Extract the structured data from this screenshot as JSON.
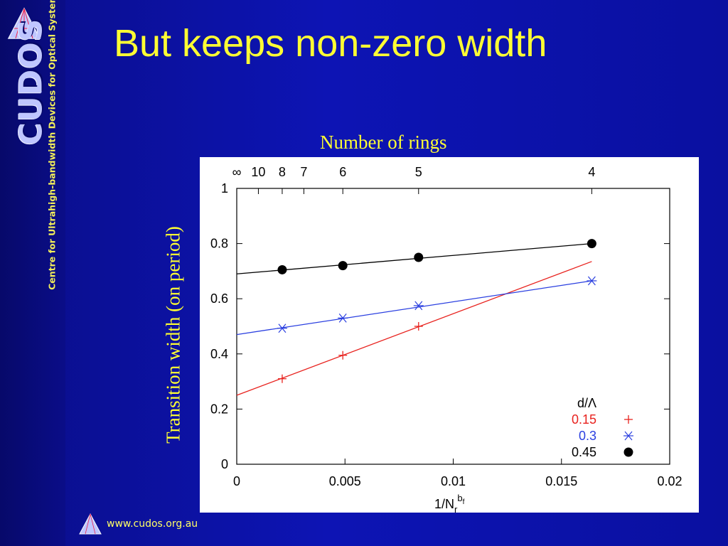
{
  "slide": {
    "title": "But keeps non-zero width",
    "top_caption": "Number of rings",
    "side_caption": "Transition width (on period)",
    "footer_url": "www.cudos.org.au"
  },
  "logo": {
    "word": "CUDOS",
    "subtitle": "Centre for Ultrahigh-bandwidth Devices for Optical Systems"
  },
  "colors": {
    "title_yellow": "#ffff33",
    "background_blue": "#0d14b4",
    "series_red": "#e8221e",
    "series_blue": "#2a3fe0",
    "series_black": "#000000"
  },
  "chart_data": {
    "type": "scatter",
    "xlabel_base": "1/N",
    "xlabel_sub": "r",
    "xlabel_sup": "b",
    "xlabel_supsub": "f",
    "xlim": [
      0,
      0.02
    ],
    "ylim": [
      0,
      1
    ],
    "x_ticks": [
      0,
      0.005,
      0.01,
      0.015,
      0.02
    ],
    "x_tick_labels": [
      "0",
      "0.005",
      "0.01",
      "0.015",
      "0.02"
    ],
    "y_ticks": [
      0,
      0.2,
      0.4,
      0.6,
      0.8,
      1
    ],
    "y_tick_labels": [
      "0",
      "0.2",
      "0.4",
      "0.6",
      "0.8",
      "1"
    ],
    "top_axis": {
      "ticks": [
        0,
        0.001,
        0.0021,
        0.0031,
        0.0049,
        0.0084,
        0.0164
      ],
      "labels": [
        "∞",
        "10",
        "8",
        "7",
        "6",
        "5",
        "4"
      ]
    },
    "legend": {
      "title": "d/Λ",
      "placement": "bottom-right"
    },
    "grid": false,
    "series": [
      {
        "name": "0.15",
        "marker": "plus",
        "color": "#e8221e",
        "x": [
          0.0021,
          0.0049,
          0.0084
        ],
        "y": [
          0.31,
          0.395,
          0.5
        ],
        "fit": {
          "x": [
            0,
            0.0164
          ],
          "y": [
            0.25,
            0.735
          ]
        }
      },
      {
        "name": "0.3",
        "marker": "star",
        "color": "#2a3fe0",
        "x": [
          0.0021,
          0.0049,
          0.0084,
          0.0164
        ],
        "y": [
          0.493,
          0.53,
          0.575,
          0.665
        ],
        "fit": {
          "x": [
            0,
            0.0164
          ],
          "y": [
            0.47,
            0.665
          ]
        }
      },
      {
        "name": "0.45",
        "marker": "dot",
        "color": "#000000",
        "x": [
          0.0021,
          0.0049,
          0.0084,
          0.0164
        ],
        "y": [
          0.705,
          0.72,
          0.75,
          0.8
        ],
        "fit": {
          "x": [
            0,
            0.0164
          ],
          "y": [
            0.69,
            0.8
          ]
        }
      }
    ]
  }
}
